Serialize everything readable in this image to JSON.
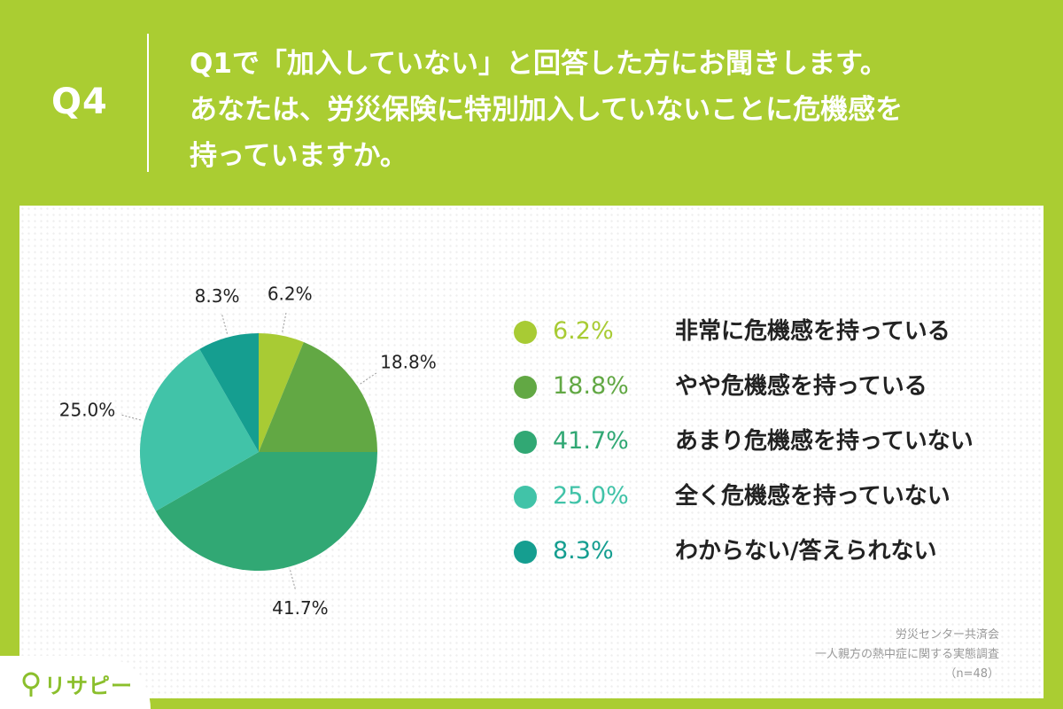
{
  "header": {
    "q_label": "Q4",
    "question_lines": [
      "Q1で「加入していない」と回答した方にお聞きします。",
      "あなたは、労災保険に特別加入していないことに危機感を",
      "持っていますか。"
    ]
  },
  "chart_data": {
    "type": "pie",
    "slices": [
      {
        "label": "非常に危機感を持っている",
        "value": 6.2,
        "display": "6.2%",
        "color": "#a8cb34"
      },
      {
        "label": "やや危機感を持っている",
        "value": 18.8,
        "display": "18.8%",
        "color": "#62a844"
      },
      {
        "label": "あまり危機感を持っていない",
        "value": 41.7,
        "display": "41.7%",
        "color": "#31a874"
      },
      {
        "label": "全く危機感を持っていない",
        "value": 25.0,
        "display": "25.0%",
        "color": "#41c3a8"
      },
      {
        "label": "わからない/答えられない",
        "value": 8.3,
        "display": "8.3%",
        "color": "#159e90"
      }
    ],
    "start_angle": "12 o'clock",
    "direction": "clockwise",
    "legend_position": "right"
  },
  "source": {
    "line1": "労災センター共済会",
    "line2": "一人親方の熱中症に関する実態調査",
    "line3": "（n=48）"
  },
  "logo": {
    "text": "リサピー"
  }
}
